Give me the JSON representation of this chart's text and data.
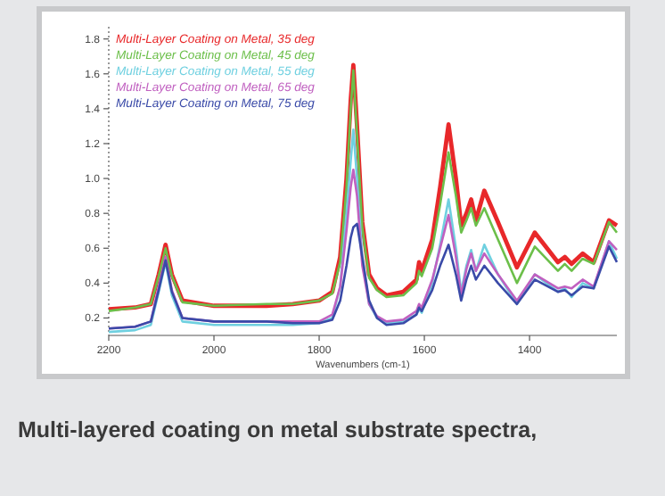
{
  "chart_data": {
    "type": "line",
    "xlabel": "Wavenumbers (cm-1)",
    "annotations": [
      "Multi-layered coating on metal substrate spectra,"
    ],
    "xlim": [
      2200,
      1234
    ],
    "xticks": [
      2200,
      2000,
      1800,
      1600,
      1400
    ],
    "ylim": [
      0.1,
      1.87
    ],
    "yticks": [
      0.2,
      0.4,
      0.6,
      0.8,
      {
        "value": 1,
        "label": "1.0"
      },
      1.2,
      1.4,
      1.6,
      1.8
    ],
    "legend": "top left",
    "grid": false,
    "marker": "none",
    "line_style": "solid",
    "x": [
      2200,
      2150,
      2120,
      2105,
      2092,
      2080,
      2060,
      2000,
      1900,
      1850,
      1800,
      1775,
      1760,
      1748,
      1740,
      1735,
      1728,
      1718,
      1705,
      1690,
      1672,
      1640,
      1615,
      1610,
      1605,
      1585,
      1570,
      1554,
      1540,
      1530,
      1520,
      1511,
      1502,
      1486,
      1460,
      1424,
      1390,
      1346,
      1333,
      1320,
      1299,
      1278,
      1249,
      1234
    ],
    "series": [
      {
        "name": "Multi-Layer Coating on Metal, 35 deg",
        "color": "#e8282a",
        "values": [
          0.25,
          0.26,
          0.28,
          0.45,
          0.62,
          0.45,
          0.3,
          0.27,
          0.27,
          0.28,
          0.3,
          0.35,
          0.55,
          1.0,
          1.45,
          1.65,
          1.3,
          0.75,
          0.45,
          0.37,
          0.33,
          0.35,
          0.42,
          0.52,
          0.47,
          0.65,
          0.95,
          1.31,
          1.0,
          0.73,
          0.8,
          0.88,
          0.76,
          0.93,
          0.75,
          0.49,
          0.69,
          0.52,
          0.55,
          0.51,
          0.57,
          0.52,
          0.76,
          0.73
        ]
      },
      {
        "name": "Multi-Layer Coating on Metal, 45 deg",
        "color": "#6cbf4a",
        "values": [
          0.24,
          0.26,
          0.28,
          0.44,
          0.6,
          0.44,
          0.29,
          0.27,
          0.28,
          0.28,
          0.3,
          0.34,
          0.52,
          0.95,
          1.4,
          1.62,
          1.25,
          0.72,
          0.43,
          0.36,
          0.32,
          0.33,
          0.4,
          0.47,
          0.44,
          0.6,
          0.85,
          1.15,
          0.9,
          0.69,
          0.76,
          0.83,
          0.73,
          0.83,
          0.65,
          0.4,
          0.61,
          0.47,
          0.51,
          0.47,
          0.54,
          0.51,
          0.75,
          0.69
        ]
      },
      {
        "name": "Multi-Layer Coating on Metal, 55 deg",
        "color": "#6fd0e0",
        "values": [
          0.12,
          0.13,
          0.16,
          0.35,
          0.52,
          0.33,
          0.18,
          0.16,
          0.16,
          0.16,
          0.17,
          0.2,
          0.38,
          0.8,
          1.1,
          1.28,
          1.0,
          0.55,
          0.28,
          0.2,
          0.17,
          0.18,
          0.22,
          0.25,
          0.23,
          0.4,
          0.62,
          0.88,
          0.6,
          0.35,
          0.5,
          0.59,
          0.47,
          0.62,
          0.45,
          0.28,
          0.45,
          0.35,
          0.37,
          0.32,
          0.4,
          0.37,
          0.64,
          0.54
        ]
      },
      {
        "name": "Multi-Layer Coating on Metal, 65 deg",
        "color": "#c060c0",
        "values": [
          0.14,
          0.15,
          0.18,
          0.38,
          0.55,
          0.36,
          0.2,
          0.18,
          0.18,
          0.18,
          0.18,
          0.22,
          0.38,
          0.7,
          0.95,
          1.05,
          0.9,
          0.5,
          0.28,
          0.21,
          0.18,
          0.19,
          0.24,
          0.28,
          0.26,
          0.42,
          0.6,
          0.79,
          0.55,
          0.33,
          0.48,
          0.57,
          0.47,
          0.57,
          0.45,
          0.3,
          0.45,
          0.37,
          0.38,
          0.37,
          0.42,
          0.38,
          0.64,
          0.59
        ]
      },
      {
        "name": "Multi-Layer Coating on Metal, 75 deg",
        "color": "#3a4aa8",
        "values": [
          0.14,
          0.15,
          0.18,
          0.36,
          0.53,
          0.35,
          0.2,
          0.18,
          0.18,
          0.17,
          0.17,
          0.19,
          0.3,
          0.5,
          0.66,
          0.72,
          0.74,
          0.55,
          0.3,
          0.2,
          0.16,
          0.17,
          0.22,
          0.26,
          0.24,
          0.36,
          0.5,
          0.62,
          0.45,
          0.3,
          0.42,
          0.5,
          0.42,
          0.5,
          0.4,
          0.28,
          0.42,
          0.35,
          0.36,
          0.33,
          0.38,
          0.37,
          0.61,
          0.52
        ]
      }
    ]
  }
}
